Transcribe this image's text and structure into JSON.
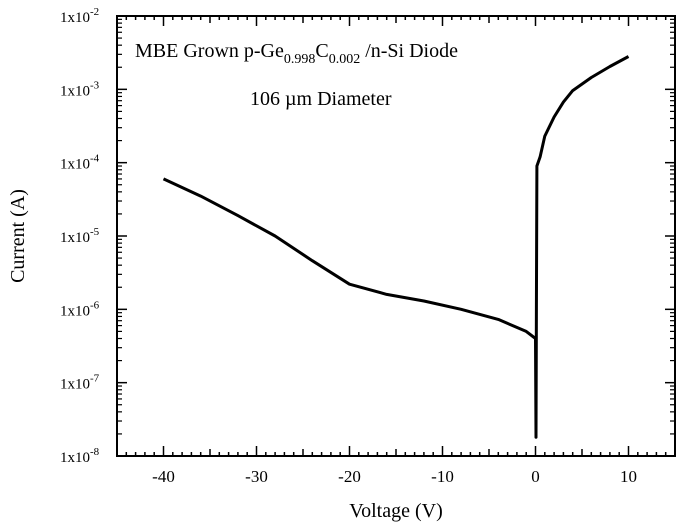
{
  "chart_data": {
    "type": "line",
    "title_parts": {
      "prefix": "MBE Grown p-Ge",
      "sub1": "0.998",
      "mid": "C",
      "sub2": "0.002",
      "suffix": " /n-Si Diode"
    },
    "subtitle": "106 µm Diameter",
    "xlabel": "Voltage (V)",
    "ylabel": "Current (A)",
    "xlim": [
      -45,
      15
    ],
    "ylim_log10": [
      -8,
      -2
    ],
    "yscale": "log",
    "grid": false,
    "x_tick_values": [
      -40,
      -30,
      -20,
      -10,
      0,
      10
    ],
    "x_tick_labels": [
      "-40",
      "-30",
      "-20",
      "-10",
      "0",
      "10"
    ],
    "y_tick_exponents": [
      -8,
      -7,
      -6,
      -5,
      -4,
      -3,
      -2
    ],
    "y_tick_labels": [
      {
        "base": "1x10",
        "exp": "-8"
      },
      {
        "base": "1x10",
        "exp": "-7"
      },
      {
        "base": "1x10",
        "exp": "-6"
      },
      {
        "base": "1x10",
        "exp": "-5"
      },
      {
        "base": "1x10",
        "exp": "-4"
      },
      {
        "base": "1x10",
        "exp": "-3"
      },
      {
        "base": "1x10",
        "exp": "-2"
      }
    ],
    "series": [
      {
        "color": "#000000",
        "points": [
          [
            -40,
            6e-05
          ],
          [
            -36,
            3.5e-05
          ],
          [
            -32,
            1.9e-05
          ],
          [
            -28,
            1e-05
          ],
          [
            -24,
            4.6e-06
          ],
          [
            -20,
            2.2e-06
          ],
          [
            -16,
            1.6e-06
          ],
          [
            -12,
            1.3e-06
          ],
          [
            -8,
            1e-06
          ],
          [
            -4,
            7.3e-07
          ],
          [
            -1,
            5e-07
          ],
          [
            0,
            4e-07
          ],
          [
            0.05,
            1.8e-08
          ],
          [
            0.1,
            1e-06
          ],
          [
            0.15,
            9e-05
          ],
          [
            0.5,
            0.00012
          ],
          [
            1,
            0.00023
          ],
          [
            2,
            0.00042
          ],
          [
            3,
            0.00067
          ],
          [
            4,
            0.00096
          ],
          [
            6,
            0.00145
          ],
          [
            8,
            0.00205
          ],
          [
            10,
            0.0028
          ]
        ]
      }
    ]
  }
}
